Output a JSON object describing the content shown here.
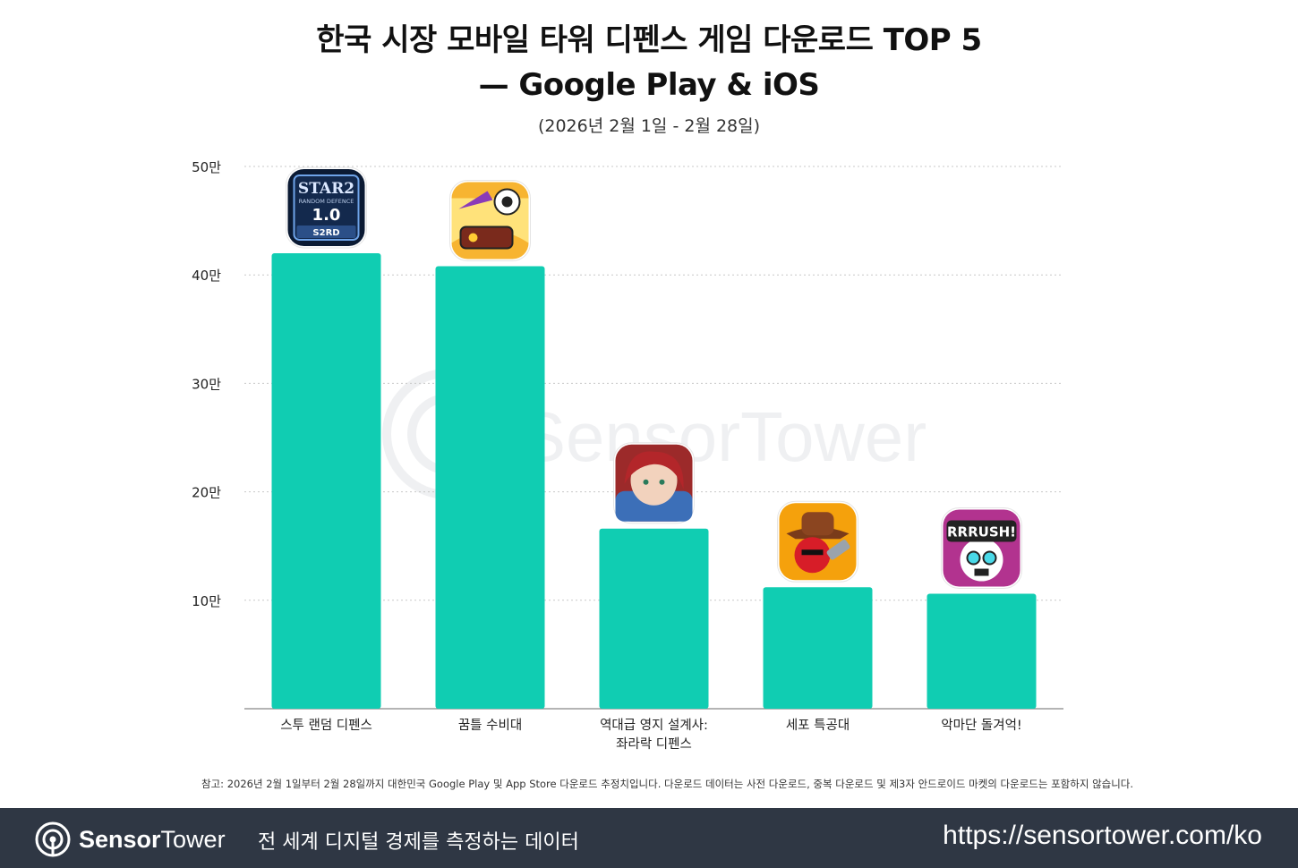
{
  "title_line1": "한국 시장 모바일 타워 디펜스 게임 다운로드 TOP 5",
  "title_line2": "— Google Play & iOS",
  "subtitle": "(2026년 2월 1일 - 2월 28일)",
  "chart_data": {
    "type": "bar",
    "categories": [
      "스투 랜덤 디펜스",
      "꿈틀 수비대",
      "역대급 영지 설계사:\n좌라락 디펜스",
      "세포 특공대",
      "악마단 돌겨억!"
    ],
    "values": [
      420000,
      408000,
      166000,
      112000,
      106000
    ],
    "ylim": [
      0,
      500000
    ],
    "yticks": [
      100000,
      200000,
      300000,
      400000,
      500000
    ],
    "ytick_labels": [
      "10만",
      "20만",
      "30만",
      "40만",
      "50만"
    ],
    "grid": true,
    "bar_color": "#10cdb2",
    "app_icons": [
      {
        "name": "star2-random-defence-icon",
        "text": [
          "STAR2",
          "RANDOM DEFENCE",
          "1.0",
          "S2RD"
        ],
        "colors": [
          "#0b1a33",
          "#6ea3e8"
        ]
      },
      {
        "name": "kkumteul-defense-icon",
        "colors": [
          "#f7b431",
          "#8a3bb8"
        ]
      },
      {
        "name": "hero-portrait-icon",
        "colors": [
          "#9c2a2a",
          "#3c6fb8"
        ]
      },
      {
        "name": "cowboy-cell-icon",
        "colors": [
          "#f5a10c",
          "#d71d28"
        ]
      },
      {
        "name": "rrrush-skull-icon",
        "text": [
          "RRRUSH!"
        ],
        "colors": [
          "#b2338f",
          "#ffd23a"
        ]
      }
    ]
  },
  "watermark": "SensorTower",
  "note": "참고: 2026년 2월 1일부터 2월 28일까지 대한민국 Google Play 및 App Store 다운로드 추정치입니다. 다운로드 데이터는 사전 다운로드, 중복 다운로드 및 제3자 안드로이드 마켓의 다운로드는 포함하지 않습니다.",
  "footer": {
    "brand_bold": "Sensor",
    "brand_light": "Tower",
    "tagline": "전 세계 디지털 경제를 측정하는 데이터",
    "url": "https://sensortower.com/ko"
  },
  "colors": {
    "footer_bg": "#2f3744",
    "bar": "#10cdb2",
    "watermark": "#c9ccd1"
  }
}
